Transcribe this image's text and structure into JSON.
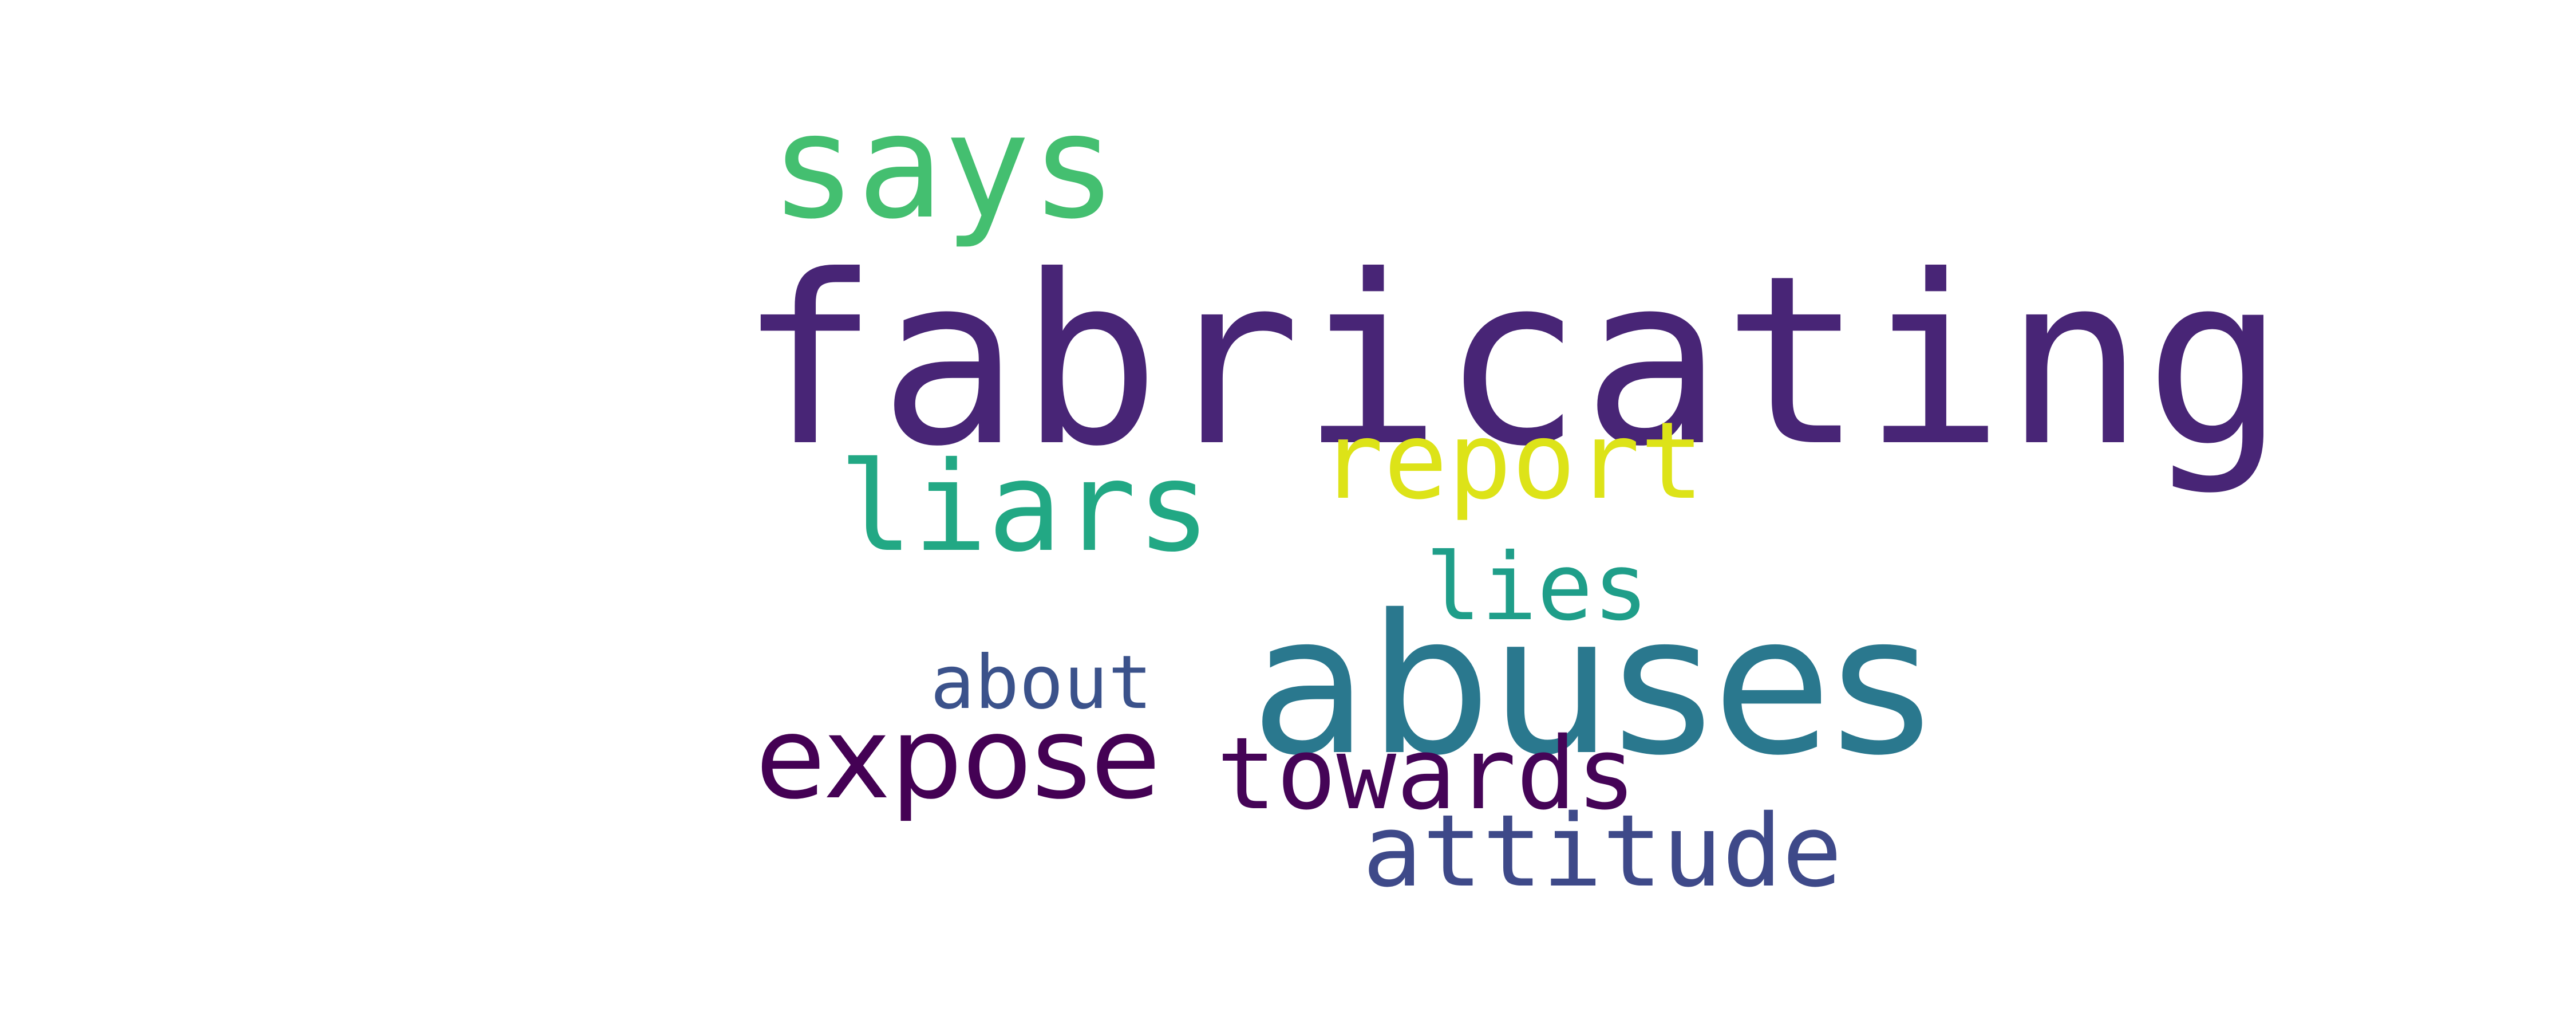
{
  "word_cloud": {
    "background": "#ffffff",
    "words": {
      "fabricating": {
        "text": "fabricating",
        "color": "#482576"
      },
      "abuses": {
        "text": "abuses",
        "color": "#2a788e"
      },
      "says": {
        "text": "says",
        "color": "#44bf70"
      },
      "liars": {
        "text": "liars",
        "color": "#22a884"
      },
      "report": {
        "text": "report",
        "color": "#dde318"
      },
      "lies": {
        "text": "lies",
        "color": "#1f9e89"
      },
      "about": {
        "text": "about",
        "color": "#3b528b"
      },
      "expose": {
        "text": "expose",
        "color": "#440154"
      },
      "towards": {
        "text": "towards",
        "color": "#450457"
      },
      "attitude": {
        "text": "attitude",
        "color": "#3e4989"
      }
    }
  }
}
